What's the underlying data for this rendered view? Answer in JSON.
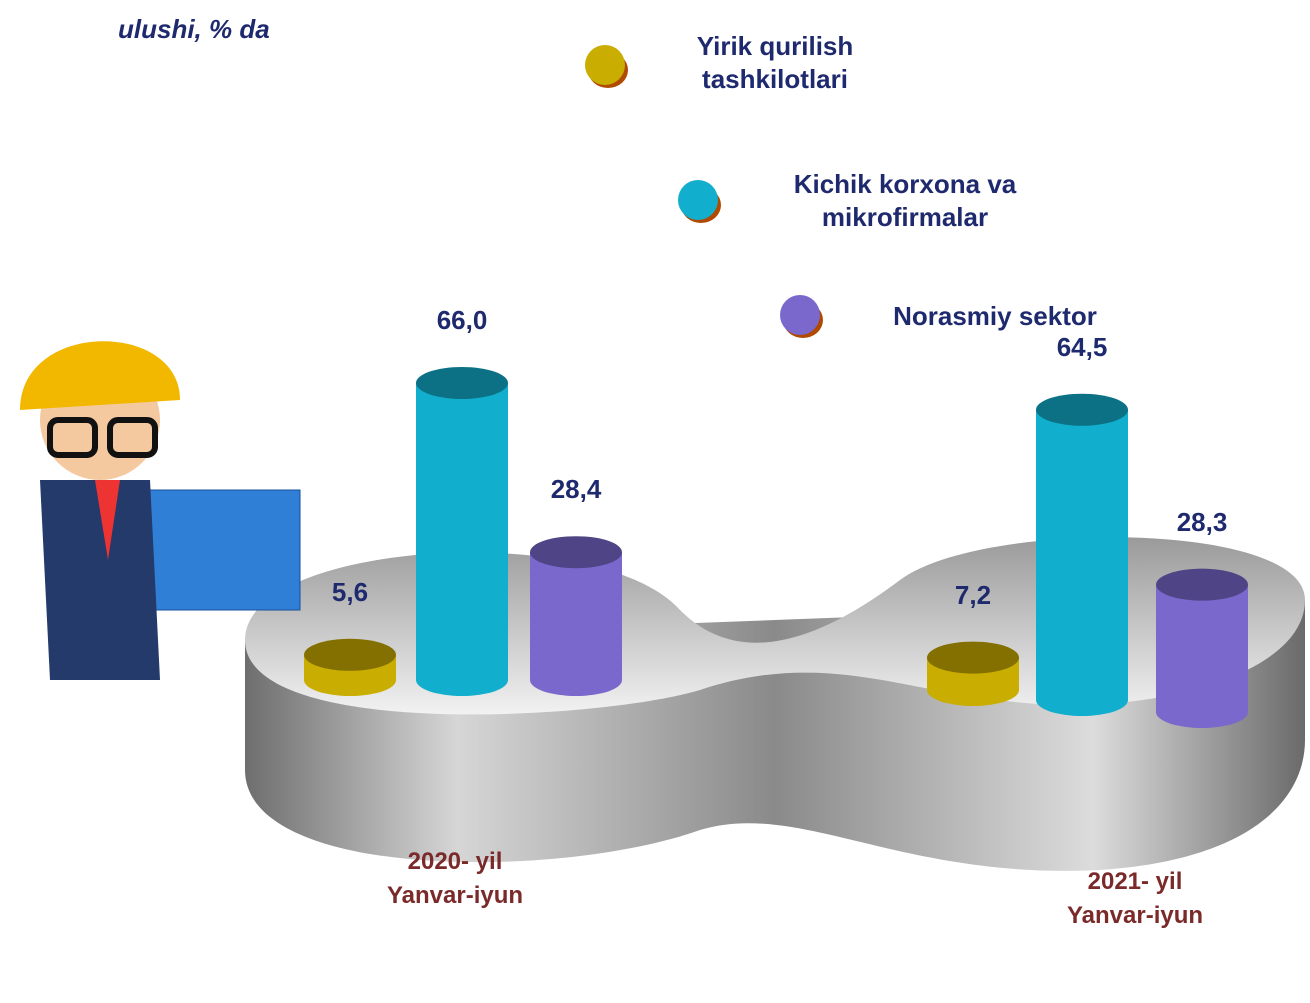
{
  "chart_data": {
    "type": "bar",
    "title": "ulushi, % da",
    "categories": [
      "2020- yil\nYanvar-iyun",
      "2021- yil\nYanvar-iyun"
    ],
    "series": [
      {
        "name": "Yirik qurilish tashkilotlari",
        "color": "#c9ad00",
        "values": [
          5.6,
          7.2
        ],
        "value_labels": [
          "5,6",
          "7,2"
        ]
      },
      {
        "name": "Kichik korxona va mikrofirmalar",
        "color": "#12aecd",
        "values": [
          66.0,
          64.5
        ],
        "value_labels": [
          "66,0",
          "64,5"
        ]
      },
      {
        "name": "Norasmiy sektor",
        "color": "#7a68cc",
        "values": [
          28.4,
          28.3
        ],
        "value_labels": [
          "28,4",
          "28,3"
        ]
      }
    ]
  }
}
